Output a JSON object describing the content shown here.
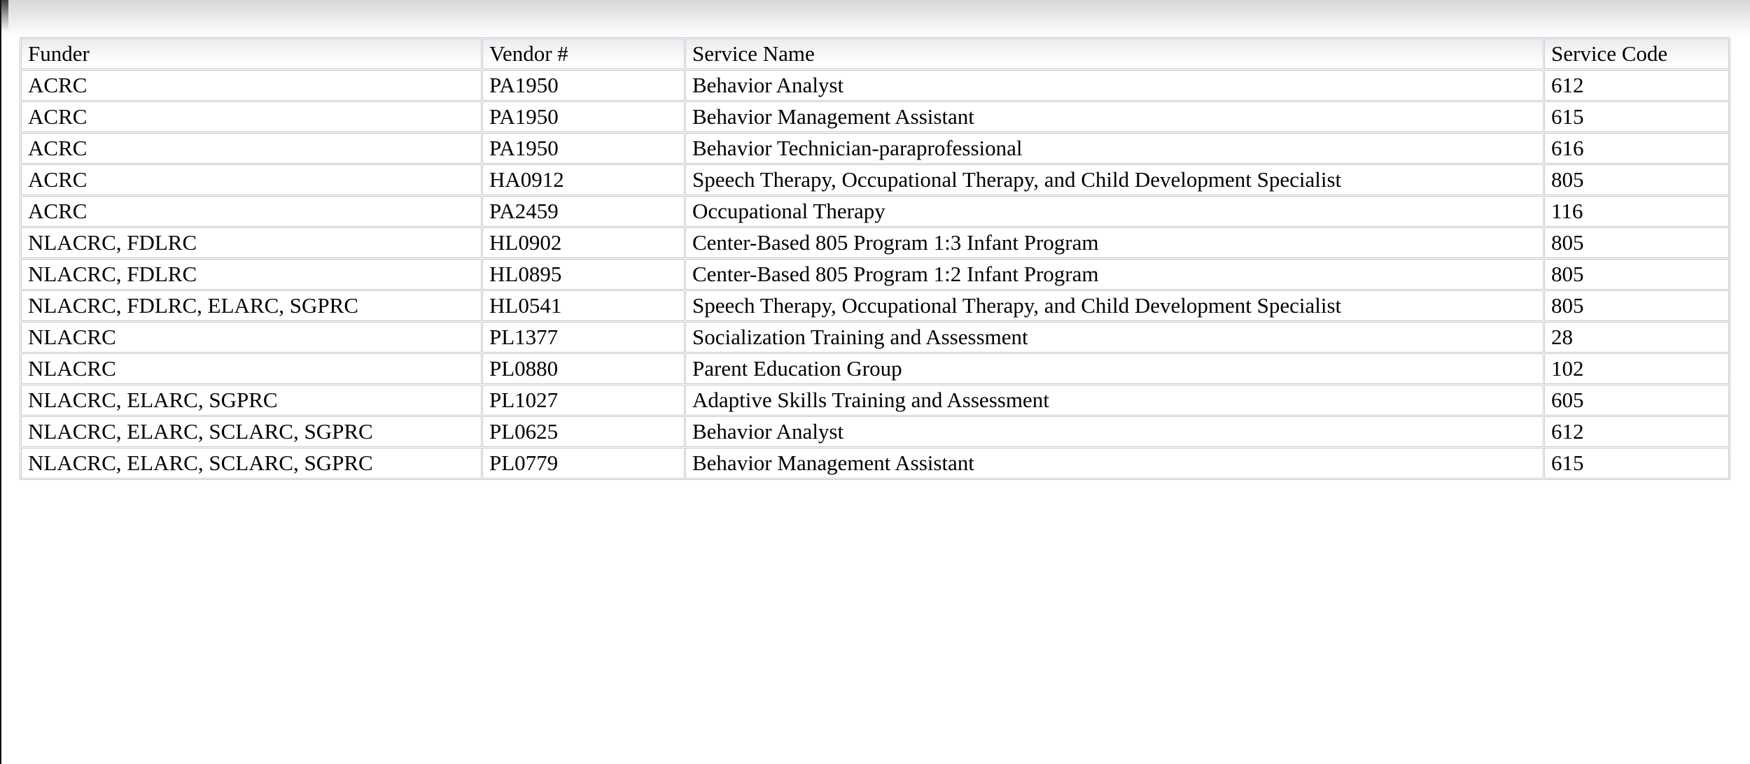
{
  "colors": {
    "cell_border": "#c6c7d0",
    "text": "#000000",
    "top_gradient_start": "#d7d7d8",
    "left_edge": "#101010",
    "cell_background": "#ffffff"
  },
  "table": {
    "columns": [
      {
        "key": "funder",
        "label": "Funder"
      },
      {
        "key": "vendor",
        "label": "Vendor #"
      },
      {
        "key": "service_name",
        "label": "Service Name"
      },
      {
        "key": "service_code",
        "label": "Service Code"
      }
    ],
    "rows": [
      {
        "funder": "ACRC",
        "vendor": "PA1950",
        "service_name": "Behavior Analyst",
        "service_code": "612"
      },
      {
        "funder": "ACRC",
        "vendor": "PA1950",
        "service_name": "Behavior Management Assistant",
        "service_code": "615"
      },
      {
        "funder": "ACRC",
        "vendor": "PA1950",
        "service_name": "Behavior Technician-paraprofessional",
        "service_code": "616"
      },
      {
        "funder": "ACRC",
        "vendor": "HA0912",
        "service_name": "Speech Therapy, Occupational Therapy, and Child Development Specialist",
        "service_code": "805"
      },
      {
        "funder": "ACRC",
        "vendor": "PA2459",
        "service_name": "Occupational Therapy",
        "service_code": "116"
      },
      {
        "funder": "NLACRC, FDLRC",
        "vendor": "HL0902",
        "service_name": "Center-Based 805 Program 1:3 Infant Program",
        "service_code": "805"
      },
      {
        "funder": "NLACRC, FDLRC",
        "vendor": "HL0895",
        "service_name": "Center-Based 805 Program 1:2 Infant Program",
        "service_code": "805"
      },
      {
        "funder": "NLACRC, FDLRC, ELARC, SGPRC",
        "vendor": "HL0541",
        "service_name": "Speech Therapy, Occupational Therapy, and Child Development Specialist",
        "service_code": "805"
      },
      {
        "funder": "NLACRC",
        "vendor": "PL1377",
        "service_name": "Socialization Training and Assessment",
        "service_code": "28"
      },
      {
        "funder": "NLACRC",
        "vendor": "PL0880",
        "service_name": "Parent Education Group",
        "service_code": "102"
      },
      {
        "funder": "NLACRC, ELARC, SGPRC",
        "vendor": "PL1027",
        "service_name": "Adaptive Skills Training and Assessment",
        "service_code": "605"
      },
      {
        "funder": "NLACRC, ELARC, SCLARC, SGPRC",
        "vendor": "PL0625",
        "service_name": "Behavior Analyst",
        "service_code": "612"
      },
      {
        "funder": "NLACRC, ELARC, SCLARC, SGPRC",
        "vendor": "PL0779",
        "service_name": "Behavior Management Assistant",
        "service_code": "615"
      }
    ]
  }
}
